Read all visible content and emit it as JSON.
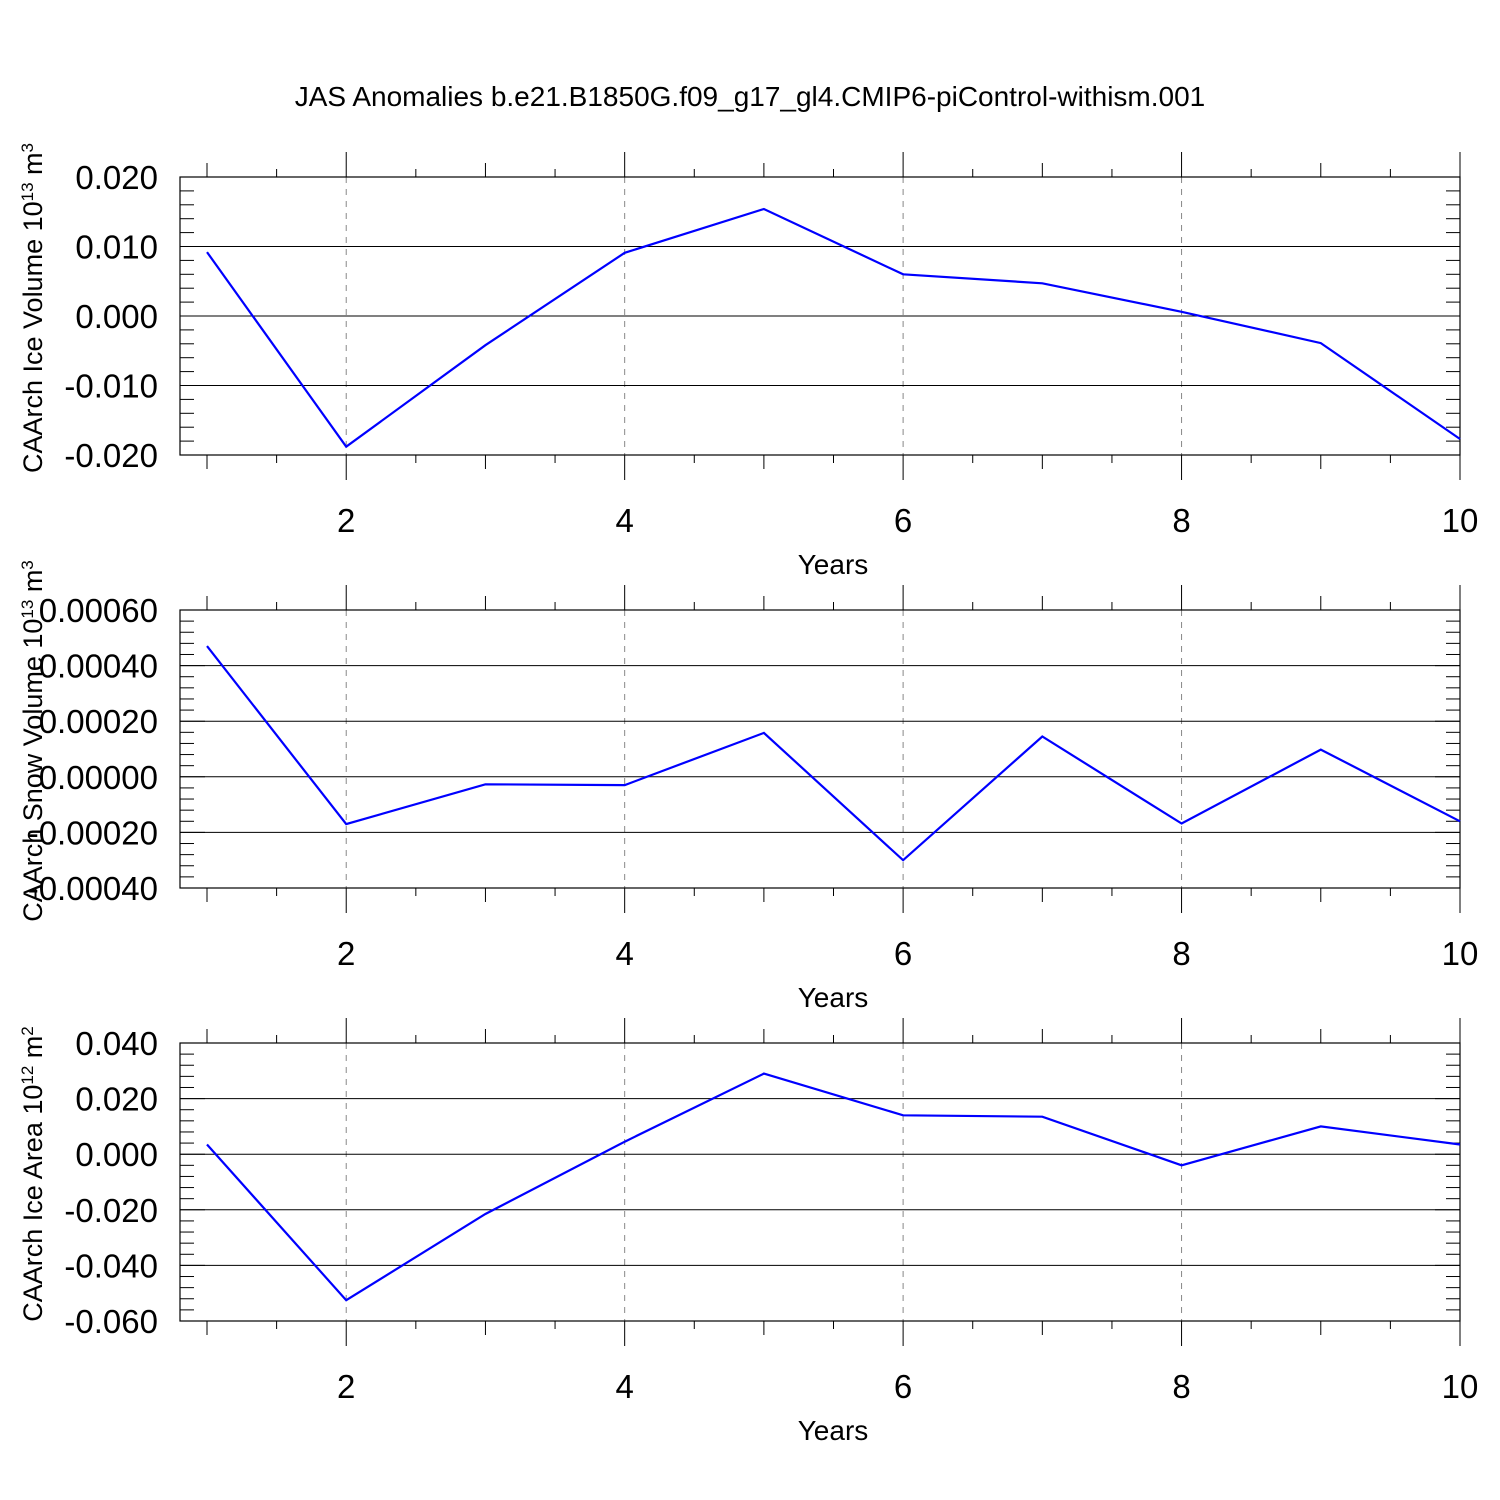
{
  "title": "JAS Anomalies b.e21.B1850G.f09_g17_gl4.CMIP6-piControl-withism.001",
  "colors": {
    "line": "#0000ff",
    "axis": "#000000",
    "grid": "#888888"
  },
  "chart_data": [
    {
      "type": "line",
      "xlabel": "Years",
      "ylabel": {
        "text": "CAArch Ice Volume 10",
        "exp1": "13",
        "unit": " m",
        "exp2": "3"
      },
      "x": [
        1,
        2,
        3,
        4,
        5,
        6,
        7,
        8,
        9,
        10
      ],
      "xlim": [
        1,
        10
      ],
      "xticks": [
        2,
        4,
        6,
        8,
        10
      ],
      "xtick_labels": [
        "2",
        "4",
        "6",
        "8",
        "10"
      ],
      "ylim": [
        -0.02,
        0.02
      ],
      "yticks": [
        -0.02,
        -0.01,
        0.0,
        0.01,
        0.02
      ],
      "ytick_labels": [
        "-0.020",
        "-0.010",
        "0.000",
        "0.010",
        "0.020"
      ],
      "y_minor_step": 0.002,
      "grid": "x-dashed",
      "series": [
        {
          "values": [
            0.0092,
            -0.0188,
            -0.0042,
            0.0091,
            0.0154,
            0.006,
            0.0047,
            0.0006,
            -0.0039,
            -0.0177
          ]
        }
      ]
    },
    {
      "type": "line",
      "xlabel": "Years",
      "ylabel": {
        "text": "CAArch Snow Volume 10",
        "exp1": "13",
        "unit": " m",
        "exp2": "3"
      },
      "x": [
        1,
        2,
        3,
        4,
        5,
        6,
        7,
        8,
        9,
        10
      ],
      "xlim": [
        1,
        10
      ],
      "xticks": [
        2,
        4,
        6,
        8,
        10
      ],
      "xtick_labels": [
        "2",
        "4",
        "6",
        "8",
        "10"
      ],
      "ylim": [
        -0.0004,
        0.0006
      ],
      "yticks": [
        -0.0004,
        -0.0002,
        0.0,
        0.0002,
        0.0004,
        0.0006
      ],
      "ytick_labels": [
        "-0.00040",
        "-0.00020",
        "0.00000",
        "0.00020",
        "0.00040",
        "0.00060"
      ],
      "y_minor_step": 4e-05,
      "grid": "x-dashed",
      "series": [
        {
          "values": [
            0.00047,
            -0.00017,
            -2.7e-05,
            -3e-05,
            0.000158,
            -0.0003,
            0.000145,
            -0.000168,
            9.8e-05,
            -0.00016
          ]
        }
      ]
    },
    {
      "type": "line",
      "xlabel": "Years",
      "ylabel": {
        "text": "CAArch Ice Area 10",
        "exp1": "12",
        "unit": " m",
        "exp2": "2"
      },
      "x": [
        1,
        2,
        3,
        4,
        5,
        6,
        7,
        8,
        9,
        10
      ],
      "xlim": [
        1,
        10
      ],
      "xticks": [
        2,
        4,
        6,
        8,
        10
      ],
      "xtick_labels": [
        "2",
        "4",
        "6",
        "8",
        "10"
      ],
      "ylim": [
        -0.06,
        0.04
      ],
      "yticks": [
        -0.06,
        -0.04,
        -0.02,
        0.0,
        0.02,
        0.04
      ],
      "ytick_labels": [
        "-0.060",
        "-0.040",
        "-0.020",
        "0.000",
        "0.020",
        "0.040"
      ],
      "y_minor_step": 0.004,
      "grid": "x-dashed",
      "series": [
        {
          "values": [
            0.0035,
            -0.0525,
            -0.0215,
            0.0045,
            0.029,
            0.014,
            0.0135,
            -0.004,
            0.01,
            0.0035
          ]
        }
      ]
    }
  ]
}
